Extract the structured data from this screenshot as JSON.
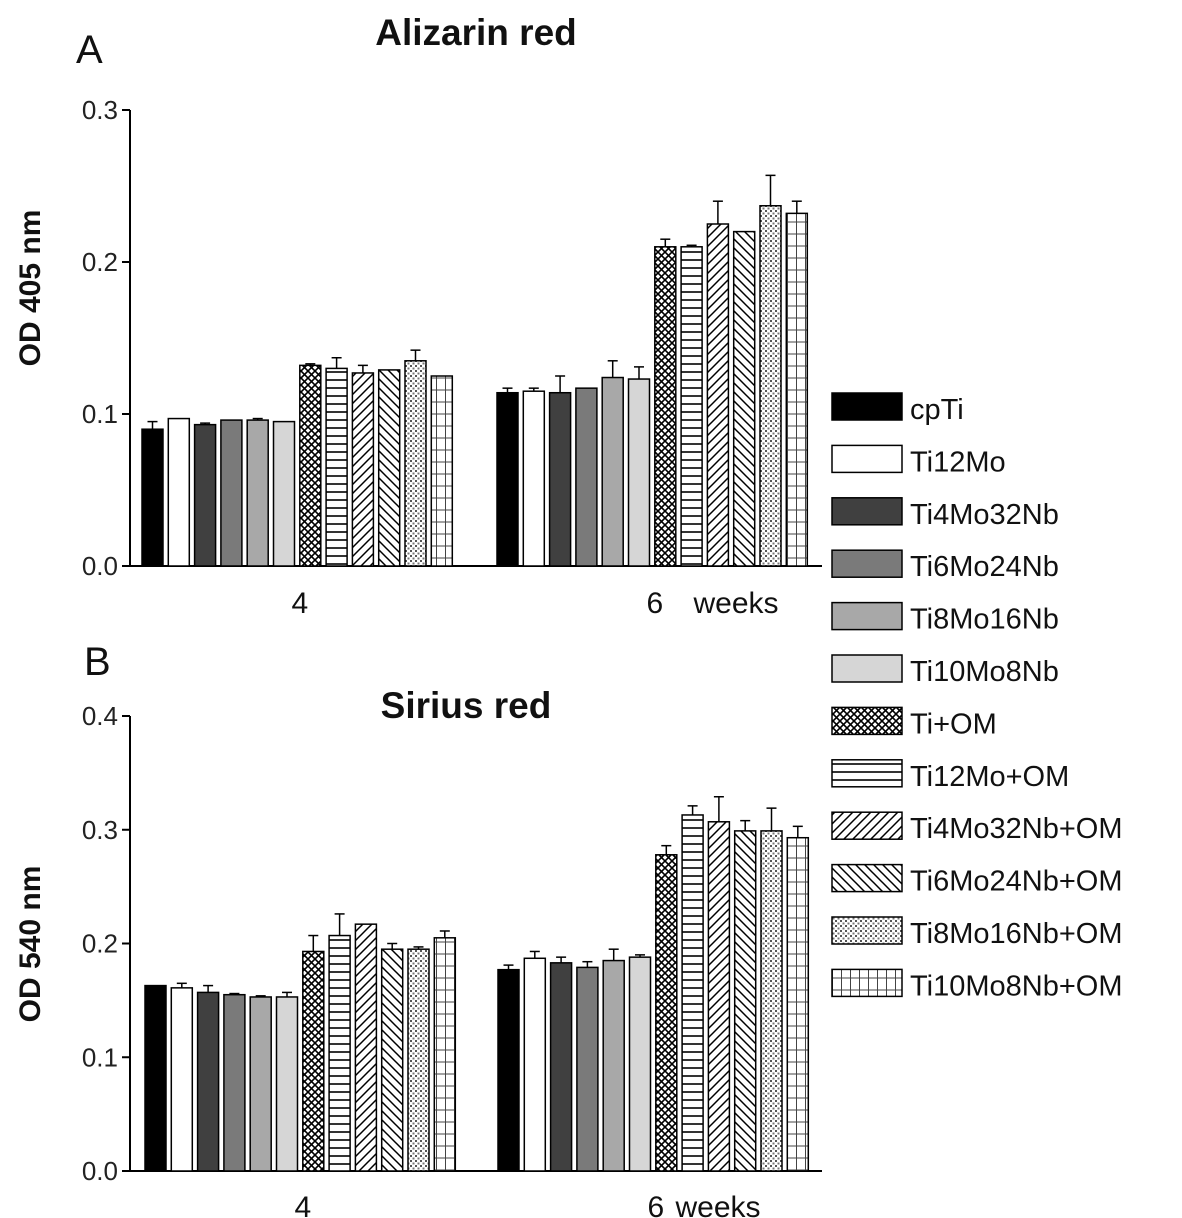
{
  "chart_data": [
    {
      "panel": "A",
      "type": "bar",
      "title": "Alizarin red",
      "ylabel": "OD  405  nm",
      "xlabel": "weeks",
      "categories": [
        "4",
        "6"
      ],
      "ylim": [
        0,
        0.3
      ],
      "yticks": [
        "0.0",
        "0.1",
        "0.2",
        "0.3"
      ],
      "series": [
        {
          "name": "cpTi",
          "values": [
            0.09,
            0.114
          ],
          "errors": [
            0.005,
            0.003
          ]
        },
        {
          "name": "Ti12Mo",
          "values": [
            0.097,
            0.115
          ],
          "errors": [
            0.0,
            0.002
          ]
        },
        {
          "name": "Ti4Mo32Nb",
          "values": [
            0.093,
            0.114
          ],
          "errors": [
            0.001,
            0.011
          ]
        },
        {
          "name": "Ti6Mo24Nb",
          "values": [
            0.096,
            0.117
          ],
          "errors": [
            0.0,
            0.0
          ]
        },
        {
          "name": "Ti8Mo16Nb",
          "values": [
            0.096,
            0.124
          ],
          "errors": [
            0.001,
            0.011
          ]
        },
        {
          "name": "Ti10Mo8Nb",
          "values": [
            0.095,
            0.123
          ],
          "errors": [
            0.0,
            0.008
          ]
        },
        {
          "name": "Ti+OM",
          "values": [
            0.132,
            0.21
          ],
          "errors": [
            0.001,
            0.005
          ]
        },
        {
          "name": "Ti12Mo+OM",
          "values": [
            0.13,
            0.21
          ],
          "errors": [
            0.007,
            0.001
          ]
        },
        {
          "name": "Ti4Mo32Nb+OM",
          "values": [
            0.127,
            0.225
          ],
          "errors": [
            0.005,
            0.015
          ]
        },
        {
          "name": "Ti6Mo24Nb+OM",
          "values": [
            0.129,
            0.22
          ],
          "errors": [
            0.0,
            0.0
          ]
        },
        {
          "name": "Ti8Mo16Nb+OM",
          "values": [
            0.135,
            0.237
          ],
          "errors": [
            0.007,
            0.02
          ]
        },
        {
          "name": "Ti10Mo8Nb+OM",
          "values": [
            0.125,
            0.232
          ],
          "errors": [
            0.0,
            0.008
          ]
        }
      ]
    },
    {
      "panel": "B",
      "type": "bar",
      "title": "Sirius red",
      "ylabel": "OD 540 nm",
      "xlabel": "weeks",
      "categories": [
        "4",
        "6"
      ],
      "ylim": [
        0,
        0.4
      ],
      "yticks": [
        "0.0",
        "0.1",
        "0.2",
        "0.3",
        "0.4"
      ],
      "series": [
        {
          "name": "cpTi",
          "values": [
            0.163,
            0.177
          ],
          "errors": [
            0.0,
            0.004
          ]
        },
        {
          "name": "Ti12Mo",
          "values": [
            0.161,
            0.187
          ],
          "errors": [
            0.004,
            0.006
          ]
        },
        {
          "name": "Ti4Mo32Nb",
          "values": [
            0.157,
            0.183
          ],
          "errors": [
            0.006,
            0.005
          ]
        },
        {
          "name": "Ti6Mo24Nb",
          "values": [
            0.155,
            0.179
          ],
          "errors": [
            0.001,
            0.005
          ]
        },
        {
          "name": "Ti8Mo16Nb",
          "values": [
            0.153,
            0.185
          ],
          "errors": [
            0.001,
            0.01
          ]
        },
        {
          "name": "Ti10Mo8Nb",
          "values": [
            0.153,
            0.188
          ],
          "errors": [
            0.004,
            0.002
          ]
        },
        {
          "name": "Ti+OM",
          "values": [
            0.193,
            0.278
          ],
          "errors": [
            0.014,
            0.008
          ]
        },
        {
          "name": "Ti12Mo+OM",
          "values": [
            0.207,
            0.313
          ],
          "errors": [
            0.019,
            0.008
          ]
        },
        {
          "name": "Ti4Mo32Nb+OM",
          "values": [
            0.217,
            0.307
          ],
          "errors": [
            0.0,
            0.022
          ]
        },
        {
          "name": "Ti6Mo24Nb+OM",
          "values": [
            0.195,
            0.299
          ],
          "errors": [
            0.005,
            0.009
          ]
        },
        {
          "name": "Ti8Mo16Nb+OM",
          "values": [
            0.195,
            0.299
          ],
          "errors": [
            0.002,
            0.02
          ]
        },
        {
          "name": "Ti10Mo8Nb+OM",
          "values": [
            0.205,
            0.293
          ],
          "errors": [
            0.006,
            0.01
          ]
        }
      ]
    }
  ],
  "legend": {
    "placement": "right",
    "entries": [
      "cpTi",
      "Ti12Mo",
      "Ti4Mo32Nb",
      "Ti6Mo24Nb",
      "Ti8Mo16Nb",
      "Ti10Mo8Nb",
      "Ti+OM",
      "Ti12Mo+OM",
      "Ti4Mo32Nb+OM",
      "Ti6Mo24Nb+OM",
      "Ti8Mo16Nb+OM",
      "Ti10Mo8Nb+OM"
    ],
    "fills": [
      "solid-black",
      "white",
      "dark-gray",
      "mid-gray",
      "light-gray",
      "lighter-gray",
      "crosshatch",
      "horizontal-lines",
      "diagonal-up",
      "diagonal-down",
      "dots",
      "grid"
    ]
  }
}
